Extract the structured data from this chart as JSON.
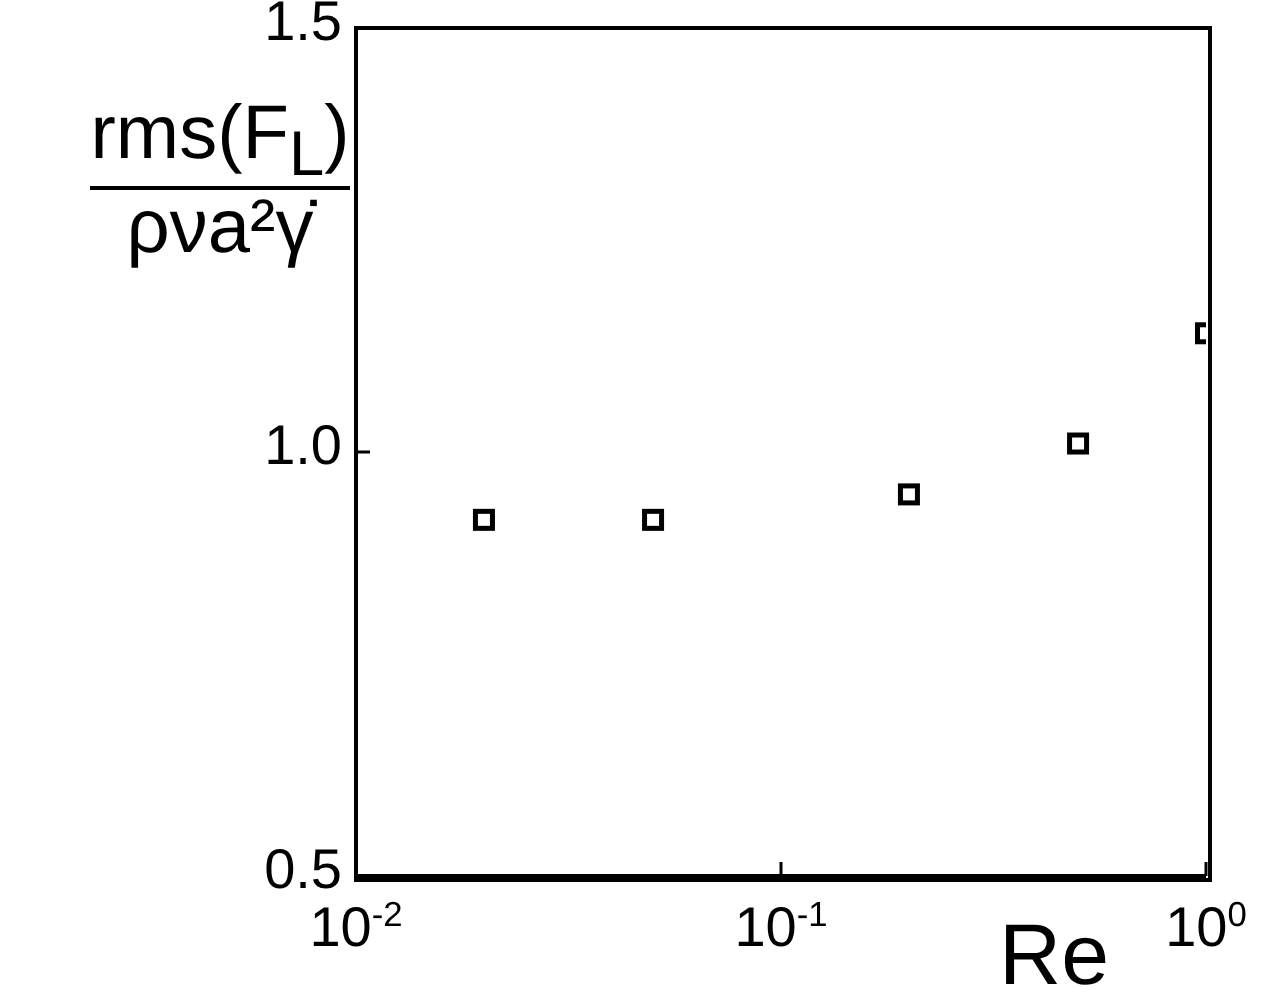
{
  "chart_data": {
    "type": "scatter",
    "xlabel": "Re",
    "ylabel": "rms(F$_{L}$)\nρνa²γ̇",
    "x": [
      0.02,
      0.05,
      0.2,
      0.5,
      1
    ],
    "values": [
      0.92,
      0.92,
      0.95,
      1.01,
      1.14
    ],
    "color": "#000000",
    "marker": "square",
    "log": "x",
    "xlim": [
      0.01,
      1
    ],
    "xticks": [
      {
        "value": 0.01,
        "label": "10$^{-2}$"
      },
      {
        "value": 0.1,
        "label": "10$^{-1}$"
      },
      {
        "value": 1,
        "label": "10$^{0}$"
      }
    ],
    "ylim": [
      0.5,
      1.5
    ],
    "yticks": [
      {
        "value": 0.5,
        "label": "0.5"
      },
      {
        "value": 1,
        "label": "1.0"
      },
      {
        "value": 1.5,
        "label": "1.5"
      }
    ]
  }
}
